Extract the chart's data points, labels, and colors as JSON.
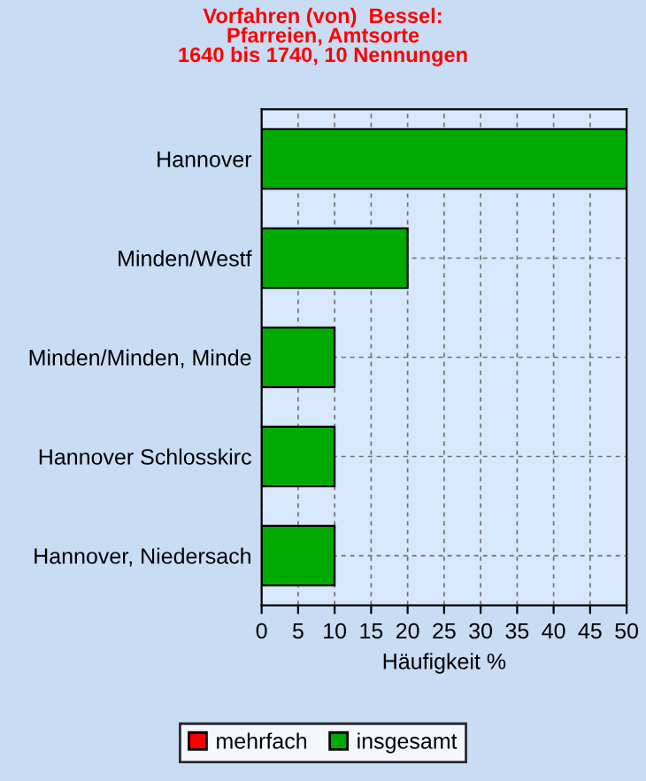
{
  "chart_data": {
    "type": "bar",
    "orientation": "horizontal",
    "title": "Vorfahren (von)  Bessel:\nPfarreien, Amtsorte\n1640 bis 1740, 10 Nennungen",
    "xlabel": "Häufigkeit %",
    "categories": [
      "Hannover",
      "Minden/Westf",
      "Minden/Minden, Minde",
      "Hannover Schlosskirc",
      "Hannover, Niedersach"
    ],
    "series": [
      {
        "name": "mehrfach",
        "color": "#ff0000",
        "values": [
          0,
          0,
          0,
          0,
          0
        ]
      },
      {
        "name": "insgesamt",
        "color": "#00aa00",
        "values": [
          50,
          20,
          10,
          10,
          10
        ]
      }
    ],
    "xlim": [
      0,
      50
    ],
    "xticks": [
      0,
      5,
      10,
      15,
      20,
      25,
      30,
      35,
      40,
      45,
      50
    ],
    "grid": true,
    "legend": "bottom"
  }
}
